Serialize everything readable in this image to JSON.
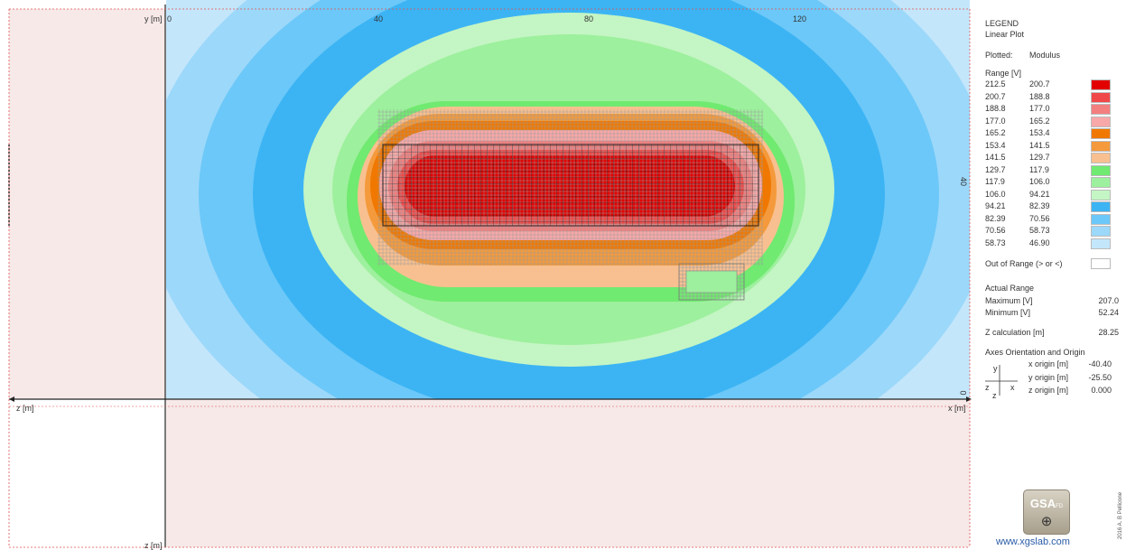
{
  "plot": {
    "axes": {
      "y_label": "y [m]",
      "y_origin_tick": "0",
      "x_ticks": [
        "40",
        "80",
        "120"
      ],
      "right_ticks": [
        "40",
        "0"
      ],
      "z_label_left": "z [m]",
      "x_label_right": "x [m]",
      "z_label_bottom": "z [m]"
    },
    "colors": {
      "plan_bg": "#f6e9e8",
      "grid_line": "#555555",
      "bands": [
        "#e20000",
        "#f04848",
        "#f47f7f",
        "#f8a8a8",
        "#f07800",
        "#f49a3c",
        "#f8c090",
        "#70ea70",
        "#9df09d",
        "#c4f5c4",
        "#3cb4f4",
        "#6cc8f8",
        "#9cd8fa",
        "#c4e6fb"
      ]
    }
  },
  "legend": {
    "title": "LEGEND",
    "subtitle": "Linear Plot",
    "plotted_label": "Plotted:",
    "plotted_value": "Modulus",
    "range_header": "Range [V]",
    "ranges": [
      {
        "from": "212.5",
        "to": "200.7",
        "color": "#e20000"
      },
      {
        "from": "200.7",
        "to": "188.8",
        "color": "#f04848"
      },
      {
        "from": "188.8",
        "to": "177.0",
        "color": "#f47f7f"
      },
      {
        "from": "177.0",
        "to": "165.2",
        "color": "#f8a8a8"
      },
      {
        "from": "165.2",
        "to": "153.4",
        "color": "#f07800"
      },
      {
        "from": "153.4",
        "to": "141.5",
        "color": "#f49a3c"
      },
      {
        "from": "141.5",
        "to": "129.7",
        "color": "#f8c090"
      },
      {
        "from": "129.7",
        "to": "117.9",
        "color": "#70ea70"
      },
      {
        "from": "117.9",
        "to": "106.0",
        "color": "#9df09d"
      },
      {
        "from": "106.0",
        "to": "94.21",
        "color": "#c4f5c4"
      },
      {
        "from": "94.21",
        "to": "82.39",
        "color": "#3cb4f4"
      },
      {
        "from": "82.39",
        "to": "70.56",
        "color": "#6cc8f8"
      },
      {
        "from": "70.56",
        "to": "58.73",
        "color": "#9cd8fa"
      },
      {
        "from": "58.73",
        "to": "46.90",
        "color": "#c4e6fb"
      }
    ],
    "out_of_range": "Out of Range (> or <)",
    "actual_range_title": "Actual Range",
    "maximum_label": "Maximum [V]",
    "maximum_value": "207.0",
    "minimum_label": "Minimum [V]",
    "minimum_value": "52.24",
    "zcalc_label": "Z calculation [m]",
    "zcalc_value": "28.25",
    "axes_title": "Axes Orientation and Origin",
    "axis_y": "y",
    "axis_z": "z",
    "axis_x": "x",
    "axis_z2": "z",
    "x_origin_label": "x origin [m]",
    "x_origin_value": "-40.40",
    "y_origin_label": "y origin [m]",
    "y_origin_value": "-25.50",
    "z_origin_label": "z origin [m]",
    "z_origin_value": "0.000",
    "logo_text": "GSA",
    "logo_sub": "FD",
    "logo_icon": "globe-icon",
    "website": "www.xgslab.com",
    "copyright": "2016 A. B Pellicone"
  }
}
